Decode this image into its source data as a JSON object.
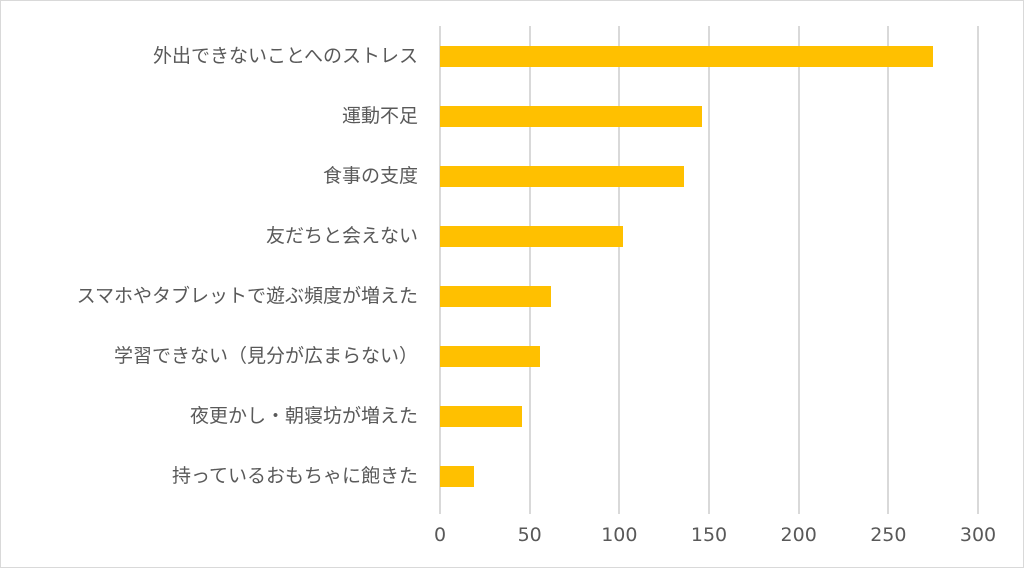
{
  "chart_data": {
    "type": "bar",
    "orientation": "horizontal",
    "title": "",
    "xlabel": "",
    "ylabel": "",
    "categories": [
      "外出できないことへのストレス",
      "運動不足",
      "食事の支度",
      "友だちと会えない",
      "スマホやタブレットで遊ぶ頻度が増えた",
      "学習できない（見分が広まらない）",
      "夜更かし・朝寝坊が増えた",
      "持っているおもちゃに飽きた"
    ],
    "values": [
      275,
      146,
      136,
      102,
      62,
      56,
      46,
      19
    ],
    "xlim": [
      0,
      300
    ],
    "xticks": [
      "0",
      "50",
      "100",
      "150",
      "200",
      "250",
      "300"
    ],
    "grid": true,
    "legend": null,
    "bar_color": "#ffc000"
  }
}
